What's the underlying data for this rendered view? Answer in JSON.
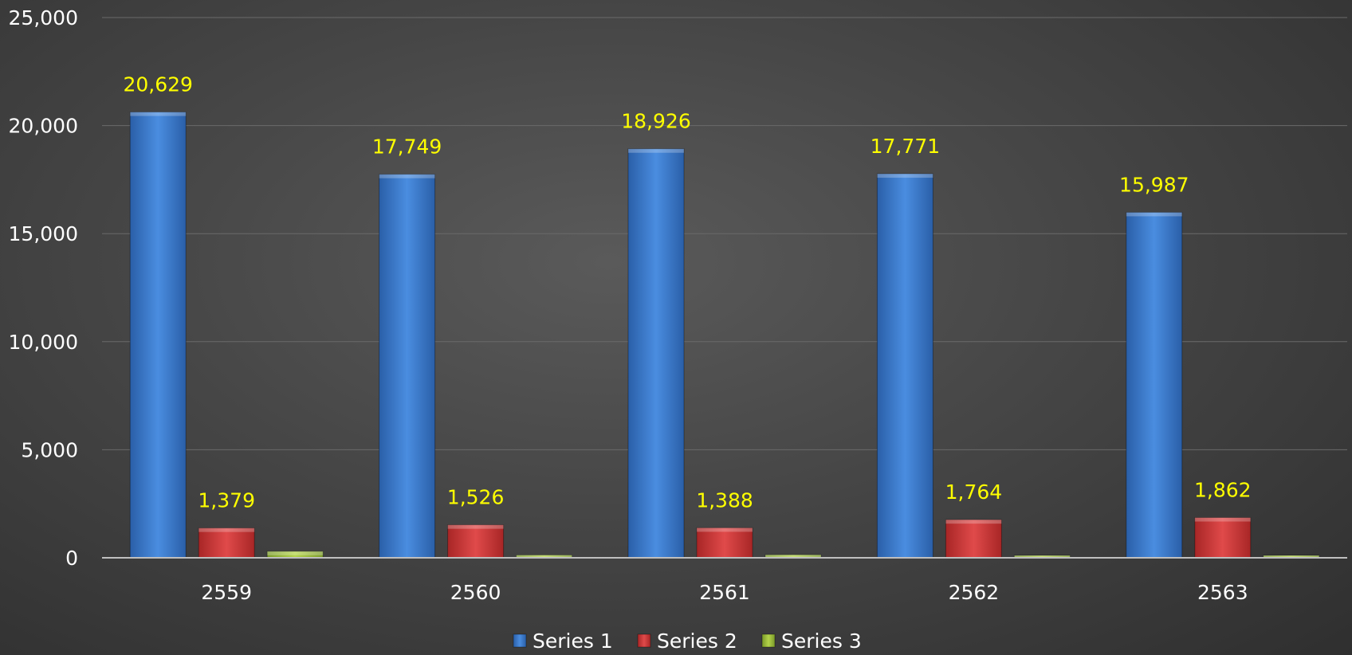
{
  "chart_data": {
    "type": "bar",
    "categories": [
      "2559",
      "2560",
      "2561",
      "2562",
      "2563"
    ],
    "series": [
      {
        "name": "Series 1",
        "color": "#3b7dd8",
        "values": [
          20629,
          17749,
          18926,
          17771,
          15987
        ],
        "labels": [
          "20,629",
          "17,749",
          "18,926",
          "17,771",
          "15,987"
        ]
      },
      {
        "name": "Series 2",
        "color": "#d93a3a",
        "values": [
          1379,
          1526,
          1388,
          1764,
          1862
        ],
        "labels": [
          "1,379",
          "1,526",
          "1,388",
          "1,764",
          "1,862"
        ]
      },
      {
        "name": "Series 3",
        "color": "#9bbb3f",
        "values": [
          300,
          130,
          140,
          40,
          80
        ],
        "labels": [
          "",
          "",
          "",
          "",
          ""
        ]
      }
    ],
    "y_ticks": [
      "0",
      "5,000",
      "10,000",
      "15,000",
      "20,000",
      "25,000"
    ],
    "ylim": [
      0,
      25000
    ],
    "grid": true,
    "legend": "bottom",
    "data_label_color": "#ffff00"
  }
}
